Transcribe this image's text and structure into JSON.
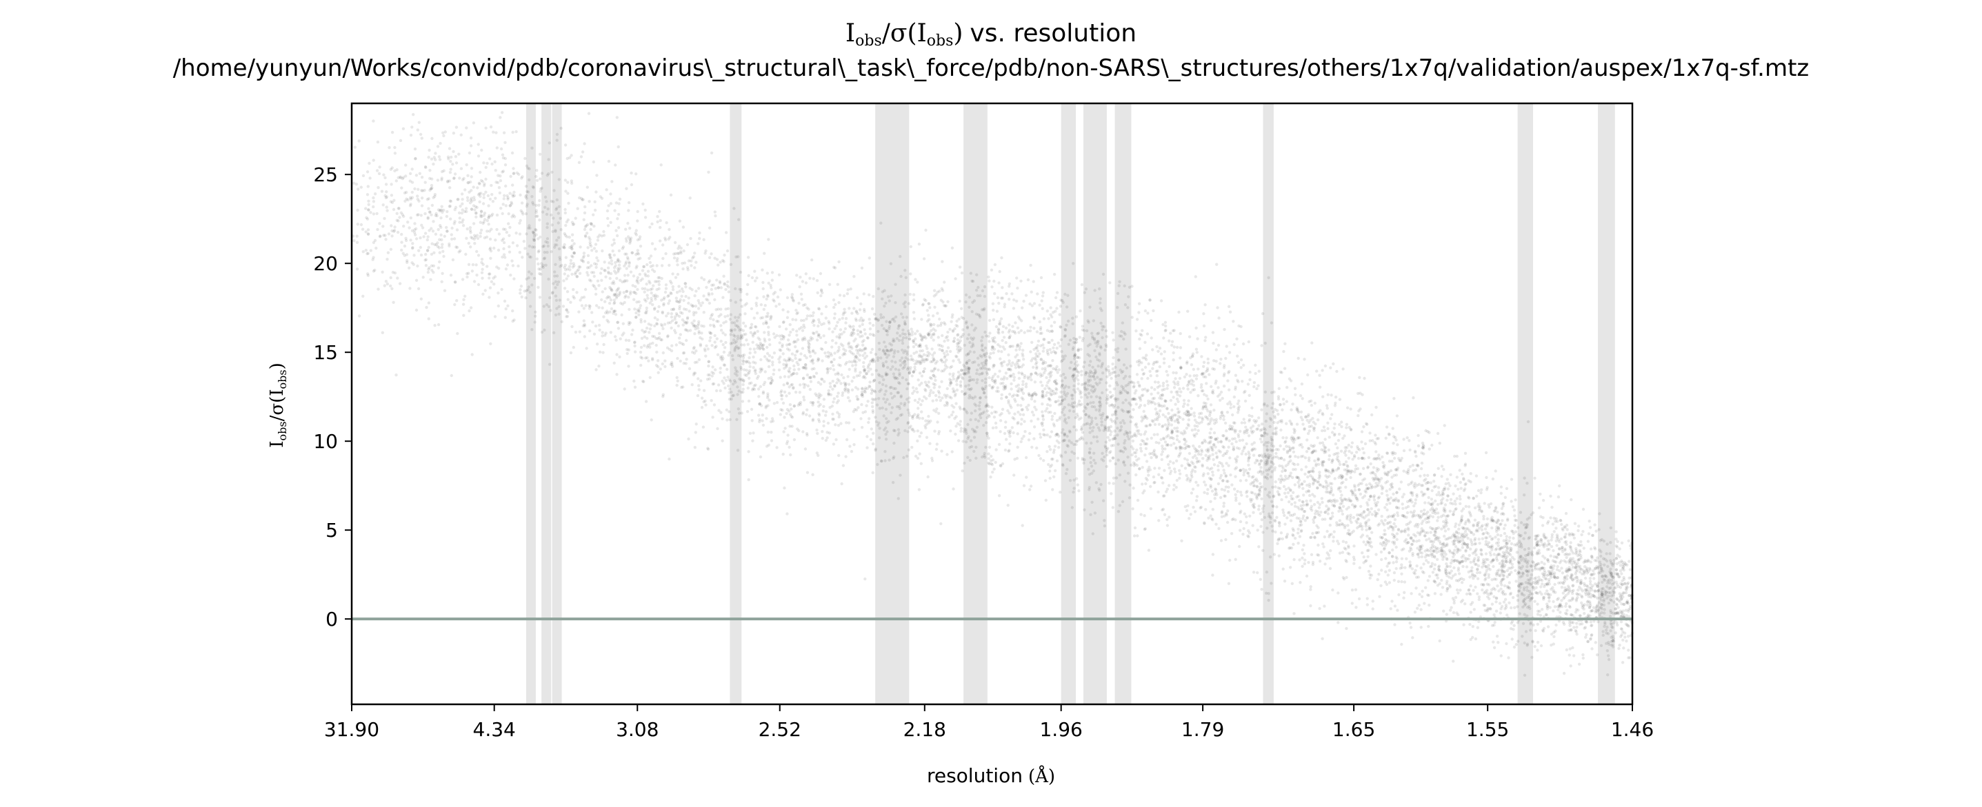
{
  "chart_data": {
    "type": "scatter",
    "title_line1": "vs. resolution",
    "title_line2": "/home/yunyun/Works/convid/pdb/coronavirus\\_structural\\_task\\_force/pdb/non-SARS\\_structures/others/1x7q/validation/auspex/1x7q-sf.mtz",
    "title_formula": {
      "main": "I",
      "sub": "obs",
      "sigma": "/σ(I",
      "sigma_sub": "obs",
      "close": ")"
    },
    "xlabel": "resolution",
    "xlabel_unit": "(Å)",
    "ylabel_formula": {
      "main": "I",
      "sub": "obs",
      "sigma": "/σ(I",
      "sigma_sub": "obs",
      "close": ")"
    },
    "x_scale": "inverse-square (1/d²)",
    "x_ticks": [
      "31.90",
      "4.34",
      "3.08",
      "2.52",
      "2.18",
      "1.96",
      "1.79",
      "1.65",
      "1.55",
      "1.46"
    ],
    "y_ticks": [
      0,
      5,
      10,
      15,
      20,
      25
    ],
    "ylim": [
      -4.8,
      29
    ],
    "xlim_resolution": [
      31.9,
      1.46
    ],
    "zero_line": 0,
    "grid": false,
    "legend": "none",
    "ice_ring_bands_resolution": [
      [
        3.93,
        3.87
      ],
      [
        3.77,
        3.7
      ],
      [
        3.67,
        3.61
      ],
      [
        2.68,
        2.64
      ],
      [
        2.28,
        2.21
      ],
      [
        2.11,
        2.07
      ],
      [
        1.96,
        1.94
      ],
      [
        1.93,
        1.9
      ],
      [
        1.89,
        1.87
      ],
      [
        1.73,
        1.72
      ],
      [
        1.53,
        1.52
      ],
      [
        1.48,
        1.47
      ]
    ],
    "distribution_profile": [
      {
        "resolution": 31.9,
        "center": 22.7,
        "spread": 4.5
      },
      {
        "resolution": 4.34,
        "center": 22.5,
        "spread": 5.0
      },
      {
        "resolution": 3.5,
        "center": 20.5,
        "spread": 5.0
      },
      {
        "resolution": 3.08,
        "center": 18.5,
        "spread": 5.0
      },
      {
        "resolution": 2.7,
        "center": 16.0,
        "spread": 5.0
      },
      {
        "resolution": 2.52,
        "center": 14.3,
        "spread": 4.5
      },
      {
        "resolution": 2.18,
        "center": 14.0,
        "spread": 4.5
      },
      {
        "resolution": 1.96,
        "center": 13.0,
        "spread": 5.0
      },
      {
        "resolution": 1.79,
        "center": 10.5,
        "spread": 5.0
      },
      {
        "resolution": 1.65,
        "center": 7.0,
        "spread": 4.8
      },
      {
        "resolution": 1.55,
        "center": 3.5,
        "spread": 3.8
      },
      {
        "resolution": 1.46,
        "center": 1.0,
        "spread": 2.8
      }
    ],
    "point_color": "#000000",
    "band_color": "#e6e6e6",
    "zero_line_color": "#8fa39b"
  }
}
